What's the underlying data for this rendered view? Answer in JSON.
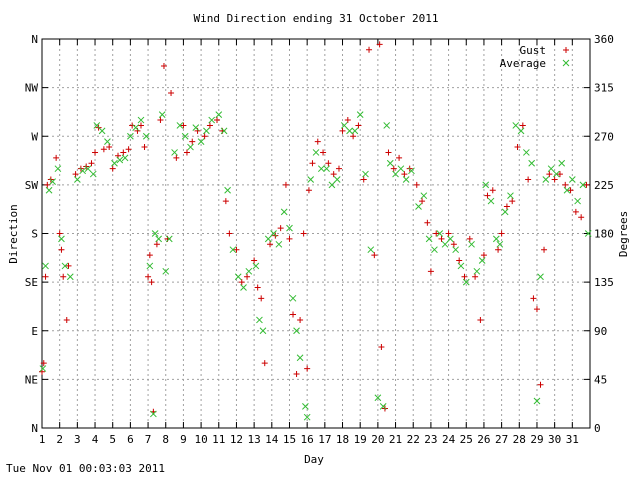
{
  "chart_data": {
    "type": "scatter",
    "title": "Wind Direction ending 31 October 2011",
    "xlabel": "Day",
    "ylabel_left": "Direction",
    "ylabel_right": "Degrees",
    "xlim": [
      1,
      32
    ],
    "ylim": [
      0,
      360
    ],
    "x_ticks": [
      "1",
      "2",
      "3",
      "4",
      "5",
      "6",
      "7",
      "8",
      "9",
      "10",
      "11",
      "12",
      "13",
      "14",
      "15",
      "16",
      "17",
      "18",
      "19",
      "20",
      "21",
      "22",
      "23",
      "24",
      "25",
      "26",
      "27",
      "28",
      "29",
      "30",
      "31"
    ],
    "y_left_ticks": [
      {
        "value": 0,
        "label": "N"
      },
      {
        "value": 45,
        "label": "NE"
      },
      {
        "value": 90,
        "label": "E"
      },
      {
        "value": 135,
        "label": "SE"
      },
      {
        "value": 180,
        "label": "S"
      },
      {
        "value": 225,
        "label": "SW"
      },
      {
        "value": 270,
        "label": "W"
      },
      {
        "value": 315,
        "label": "NW"
      },
      {
        "value": 360,
        "label": "N"
      }
    ],
    "y_right_ticks": [
      "0",
      "45",
      "90",
      "135",
      "180",
      "225",
      "270",
      "315",
      "360"
    ],
    "grid": true,
    "legend_position": "top-right",
    "series": [
      {
        "name": "Gust",
        "marker": "plus",
        "color": "#cc0000",
        "points": [
          [
            1.0,
            52
          ],
          [
            1.1,
            60
          ],
          [
            1.2,
            140
          ],
          [
            1.3,
            225
          ],
          [
            1.5,
            230
          ],
          [
            1.8,
            250
          ],
          [
            2.0,
            180
          ],
          [
            2.1,
            165
          ],
          [
            2.2,
            140
          ],
          [
            2.4,
            100
          ],
          [
            2.5,
            150
          ],
          [
            2.9,
            235
          ],
          [
            3.2,
            240
          ],
          [
            3.5,
            242
          ],
          [
            3.8,
            245
          ],
          [
            4.0,
            255
          ],
          [
            4.2,
            278
          ],
          [
            4.5,
            258
          ],
          [
            4.8,
            260
          ],
          [
            5.0,
            240
          ],
          [
            5.3,
            252
          ],
          [
            5.6,
            255
          ],
          [
            5.9,
            258
          ],
          [
            6.1,
            280
          ],
          [
            6.4,
            275
          ],
          [
            6.6,
            280
          ],
          [
            6.8,
            260
          ],
          [
            7.0,
            140
          ],
          [
            7.1,
            160
          ],
          [
            7.2,
            135
          ],
          [
            7.3,
            15
          ],
          [
            7.5,
            170
          ],
          [
            7.7,
            285
          ],
          [
            7.9,
            335
          ],
          [
            8.1,
            175
          ],
          [
            8.3,
            310
          ],
          [
            8.6,
            250
          ],
          [
            9.0,
            280
          ],
          [
            9.2,
            255
          ],
          [
            9.5,
            265
          ],
          [
            9.8,
            275
          ],
          [
            10.2,
            270
          ],
          [
            10.5,
            280
          ],
          [
            10.9,
            285
          ],
          [
            11.2,
            275
          ],
          [
            11.4,
            210
          ],
          [
            11.6,
            180
          ],
          [
            12.0,
            165
          ],
          [
            12.3,
            135
          ],
          [
            12.6,
            140
          ],
          [
            13.0,
            155
          ],
          [
            13.2,
            130
          ],
          [
            13.4,
            120
          ],
          [
            13.6,
            60
          ],
          [
            13.9,
            170
          ],
          [
            14.2,
            178
          ],
          [
            14.5,
            185
          ],
          [
            14.8,
            225
          ],
          [
            15.0,
            175
          ],
          [
            15.2,
            105
          ],
          [
            15.4,
            50
          ],
          [
            15.6,
            100
          ],
          [
            15.8,
            180
          ],
          [
            16.0,
            55
          ],
          [
            16.1,
            220
          ],
          [
            16.3,
            245
          ],
          [
            16.6,
            265
          ],
          [
            16.9,
            255
          ],
          [
            17.2,
            245
          ],
          [
            17.5,
            235
          ],
          [
            17.8,
            240
          ],
          [
            18.0,
            275
          ],
          [
            18.3,
            285
          ],
          [
            18.6,
            270
          ],
          [
            18.9,
            280
          ],
          [
            19.2,
            230
          ],
          [
            19.5,
            350
          ],
          [
            19.8,
            160
          ],
          [
            20.1,
            355
          ],
          [
            20.2,
            75
          ],
          [
            20.4,
            18
          ],
          [
            20.6,
            255
          ],
          [
            20.9,
            240
          ],
          [
            21.2,
            250
          ],
          [
            21.5,
            235
          ],
          [
            21.8,
            240
          ],
          [
            22.2,
            225
          ],
          [
            22.5,
            210
          ],
          [
            22.8,
            190
          ],
          [
            23.0,
            145
          ],
          [
            23.3,
            180
          ],
          [
            23.6,
            175
          ],
          [
            24.0,
            180
          ],
          [
            24.3,
            170
          ],
          [
            24.6,
            155
          ],
          [
            24.9,
            140
          ],
          [
            25.2,
            175
          ],
          [
            25.5,
            140
          ],
          [
            25.8,
            100
          ],
          [
            26.0,
            160
          ],
          [
            26.2,
            215
          ],
          [
            26.5,
            220
          ],
          [
            26.8,
            165
          ],
          [
            27.0,
            180
          ],
          [
            27.3,
            205
          ],
          [
            27.6,
            210
          ],
          [
            27.9,
            260
          ],
          [
            28.2,
            280
          ],
          [
            28.5,
            230
          ],
          [
            28.8,
            120
          ],
          [
            29.0,
            110
          ],
          [
            29.2,
            40
          ],
          [
            29.4,
            165
          ],
          [
            29.7,
            235
          ],
          [
            30.0,
            230
          ],
          [
            30.3,
            235
          ],
          [
            30.6,
            225
          ],
          [
            30.9,
            220
          ],
          [
            31.2,
            200
          ],
          [
            31.5,
            195
          ],
          [
            31.8,
            225
          ]
        ]
      },
      {
        "name": "Average",
        "marker": "cross",
        "color": "#33bb33",
        "points": [
          [
            1.05,
            55
          ],
          [
            1.2,
            150
          ],
          [
            1.4,
            220
          ],
          [
            1.6,
            228
          ],
          [
            1.9,
            240
          ],
          [
            2.1,
            175
          ],
          [
            2.3,
            150
          ],
          [
            2.6,
            140
          ],
          [
            3.0,
            230
          ],
          [
            3.3,
            238
          ],
          [
            3.6,
            240
          ],
          [
            3.9,
            235
          ],
          [
            4.1,
            280
          ],
          [
            4.4,
            275
          ],
          [
            4.7,
            265
          ],
          [
            5.1,
            245
          ],
          [
            5.4,
            248
          ],
          [
            5.7,
            250
          ],
          [
            6.0,
            270
          ],
          [
            6.3,
            278
          ],
          [
            6.6,
            285
          ],
          [
            6.9,
            270
          ],
          [
            7.1,
            150
          ],
          [
            7.3,
            13
          ],
          [
            7.4,
            180
          ],
          [
            7.6,
            175
          ],
          [
            7.8,
            290
          ],
          [
            8.0,
            145
          ],
          [
            8.2,
            175
          ],
          [
            8.5,
            255
          ],
          [
            8.8,
            280
          ],
          [
            9.1,
            270
          ],
          [
            9.4,
            260
          ],
          [
            9.7,
            278
          ],
          [
            10.0,
            265
          ],
          [
            10.3,
            275
          ],
          [
            10.6,
            285
          ],
          [
            11.0,
            290
          ],
          [
            11.3,
            275
          ],
          [
            11.5,
            220
          ],
          [
            11.8,
            165
          ],
          [
            12.1,
            140
          ],
          [
            12.4,
            130
          ],
          [
            12.7,
            145
          ],
          [
            13.1,
            150
          ],
          [
            13.3,
            100
          ],
          [
            13.5,
            90
          ],
          [
            13.8,
            175
          ],
          [
            14.1,
            180
          ],
          [
            14.4,
            170
          ],
          [
            14.7,
            200
          ],
          [
            15.0,
            185
          ],
          [
            15.2,
            120
          ],
          [
            15.4,
            90
          ],
          [
            15.6,
            65
          ],
          [
            15.9,
            20
          ],
          [
            16.0,
            10
          ],
          [
            16.2,
            230
          ],
          [
            16.5,
            255
          ],
          [
            16.8,
            240
          ],
          [
            17.1,
            240
          ],
          [
            17.4,
            225
          ],
          [
            17.7,
            230
          ],
          [
            18.1,
            280
          ],
          [
            18.4,
            275
          ],
          [
            18.7,
            275
          ],
          [
            19.0,
            290
          ],
          [
            19.3,
            235
          ],
          [
            19.6,
            165
          ],
          [
            20.0,
            28
          ],
          [
            20.3,
            20
          ],
          [
            20.5,
            280
          ],
          [
            20.7,
            245
          ],
          [
            21.0,
            235
          ],
          [
            21.3,
            240
          ],
          [
            21.6,
            230
          ],
          [
            21.9,
            238
          ],
          [
            22.3,
            205
          ],
          [
            22.6,
            215
          ],
          [
            22.9,
            175
          ],
          [
            23.2,
            165
          ],
          [
            23.5,
            180
          ],
          [
            23.8,
            170
          ],
          [
            24.1,
            175
          ],
          [
            24.4,
            165
          ],
          [
            24.7,
            150
          ],
          [
            25.0,
            135
          ],
          [
            25.3,
            170
          ],
          [
            25.6,
            145
          ],
          [
            25.9,
            155
          ],
          [
            26.1,
            225
          ],
          [
            26.4,
            210
          ],
          [
            26.7,
            175
          ],
          [
            26.9,
            170
          ],
          [
            27.2,
            200
          ],
          [
            27.5,
            215
          ],
          [
            27.8,
            280
          ],
          [
            28.1,
            275
          ],
          [
            28.4,
            255
          ],
          [
            28.7,
            245
          ],
          [
            29.0,
            25
          ],
          [
            29.2,
            140
          ],
          [
            29.5,
            230
          ],
          [
            29.8,
            240
          ],
          [
            30.1,
            235
          ],
          [
            30.4,
            245
          ],
          [
            30.7,
            220
          ],
          [
            31.0,
            230
          ],
          [
            31.3,
            210
          ],
          [
            31.6,
            225
          ],
          [
            31.9,
            180
          ]
        ]
      }
    ]
  },
  "timestamp": "Tue Nov 01 00:03:03 2011"
}
